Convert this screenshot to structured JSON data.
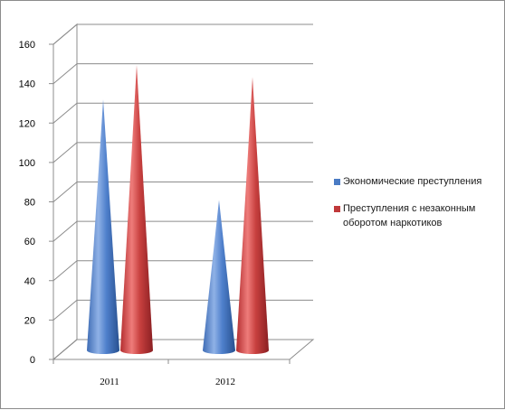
{
  "chart_data": {
    "type": "bar",
    "shape": "cone-3d",
    "categories": [
      "2011",
      "2012"
    ],
    "series": [
      {
        "name": "Экономические преступления",
        "values": [
          131,
          80
        ],
        "color": "#4a7bc4"
      },
      {
        "name": "Преступления с незаконным оборотом наркотиков",
        "values": [
          148,
          142
        ],
        "color": "#c0393b"
      }
    ],
    "ylim": [
      0,
      160
    ],
    "yticks": [
      0,
      20,
      40,
      60,
      80,
      100,
      120,
      140,
      160
    ],
    "grid": true,
    "legend": "right",
    "title": "",
    "xlabel": "",
    "ylabel": ""
  }
}
